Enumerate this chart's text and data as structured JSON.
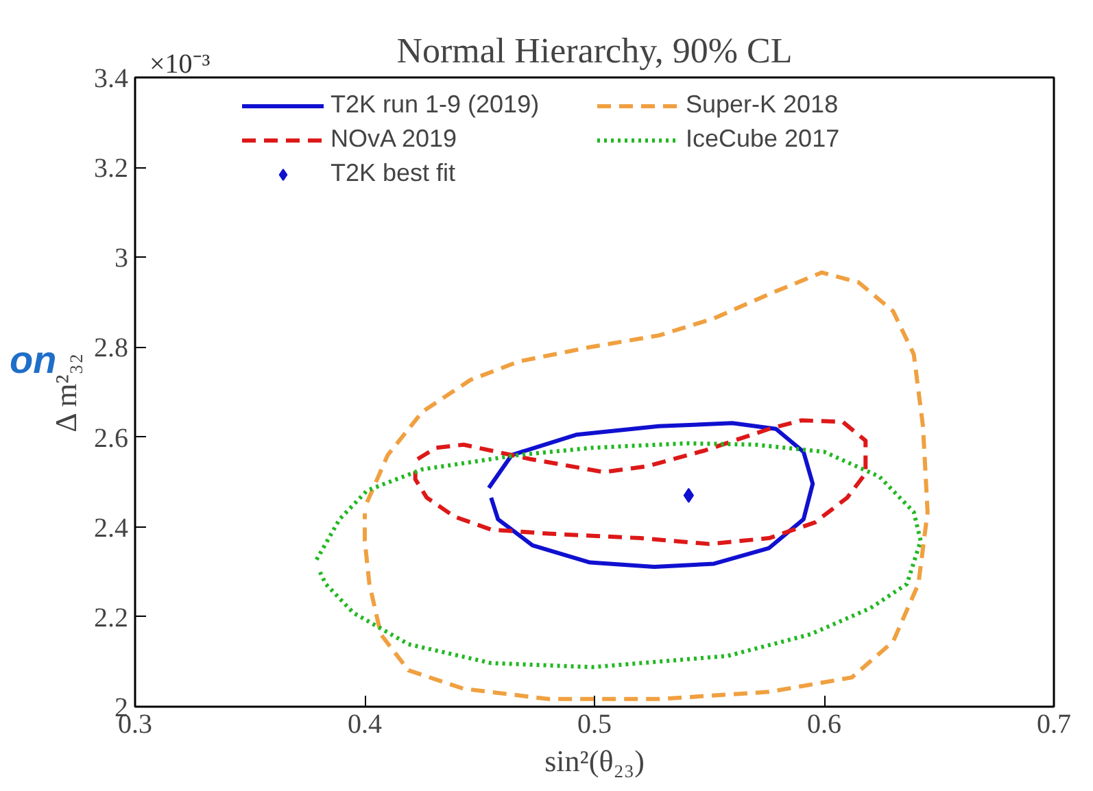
{
  "chart_data": {
    "type": "line",
    "title": "Normal Hierarchy, 90% CL",
    "xlabel": "sin²(θ₂₃)",
    "ylabel": "Δ m²₃₂",
    "annotations": [
      "×10⁻³",
      "on"
    ],
    "xlim": [
      0.3,
      0.7
    ],
    "xticks": [
      0.3,
      0.4,
      0.5,
      0.6,
      0.7
    ],
    "ylim": [
      2,
      3.4
    ],
    "yticks": [
      2,
      2.2,
      2.4,
      2.6,
      2.8,
      3,
      3.2,
      3.4
    ],
    "grid": false,
    "legend": "top",
    "marker": "none",
    "series": [
      {
        "name": "T2K run 1-9 (2019)",
        "color": "#1010d0",
        "line_style": "solid",
        "x": [
          0.454,
          0.464,
          0.492,
          0.528,
          0.56,
          0.579,
          0.591,
          0.595,
          0.591,
          0.576,
          0.552,
          0.526,
          0.498,
          0.473,
          0.458,
          0.455
        ],
        "values": [
          2.487,
          2.56,
          2.605,
          2.624,
          2.631,
          2.618,
          2.567,
          2.496,
          2.417,
          2.353,
          2.318,
          2.311,
          2.321,
          2.359,
          2.417,
          2.465
        ]
      },
      {
        "name": "NOvA 2019",
        "color": "#dd1818",
        "line_style": "dashed",
        "x": [
          0.423,
          0.431,
          0.443,
          0.472,
          0.504,
          0.523,
          0.548,
          0.576,
          0.59,
          0.608,
          0.618,
          0.618,
          0.61,
          0.596,
          0.576,
          0.55,
          0.52,
          0.48,
          0.455,
          0.439,
          0.427,
          0.422,
          0.422
        ],
        "values": [
          2.551,
          2.576,
          2.583,
          2.551,
          2.522,
          2.535,
          2.57,
          2.618,
          2.637,
          2.634,
          2.592,
          2.519,
          2.465,
          2.41,
          2.375,
          2.362,
          2.375,
          2.385,
          2.394,
          2.423,
          2.465,
          2.506,
          2.535
        ]
      },
      {
        "name": "T2K best fit",
        "type": "scatter",
        "marker": "diamond",
        "color": "#1010d0",
        "x": [
          0.541
        ],
        "values": [
          2.47
        ]
      },
      {
        "name": "Super-K 2018",
        "color": "#f0a040",
        "line_style": "dashed",
        "x": [
          0.401,
          0.41,
          0.425,
          0.446,
          0.467,
          0.498,
          0.528,
          0.552,
          0.576,
          0.599,
          0.615,
          0.63,
          0.639,
          0.643,
          0.645,
          0.641,
          0.63,
          0.612,
          0.576,
          0.528,
          0.48,
          0.443,
          0.419,
          0.407,
          0.402,
          0.4,
          0.4
        ],
        "values": [
          2.455,
          2.56,
          2.656,
          2.727,
          2.768,
          2.8,
          2.826,
          2.864,
          2.918,
          2.966,
          2.944,
          2.88,
          2.784,
          2.624,
          2.433,
          2.273,
          2.145,
          2.065,
          2.033,
          2.017,
          2.017,
          2.04,
          2.081,
          2.161,
          2.273,
          2.369,
          2.43
        ]
      },
      {
        "name": "IceCube 2017",
        "color": "#22b822",
        "line_style": "dotted",
        "x": [
          0.379,
          0.389,
          0.401,
          0.425,
          0.467,
          0.499,
          0.54,
          0.57,
          0.6,
          0.624,
          0.639,
          0.642,
          0.636,
          0.62,
          0.594,
          0.558,
          0.499,
          0.455,
          0.419,
          0.395,
          0.383,
          0.38
        ],
        "values": [
          2.327,
          2.417,
          2.481,
          2.528,
          2.56,
          2.576,
          2.586,
          2.583,
          2.567,
          2.512,
          2.433,
          2.369,
          2.273,
          2.219,
          2.161,
          2.113,
          2.088,
          2.097,
          2.139,
          2.209,
          2.273,
          2.305
        ]
      }
    ]
  }
}
